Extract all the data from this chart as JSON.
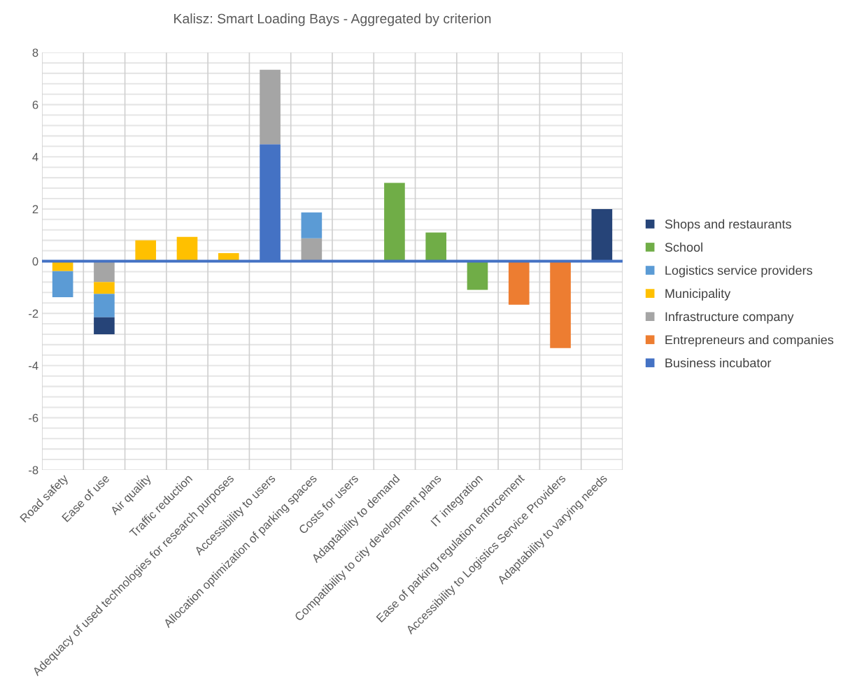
{
  "chart_data": {
    "type": "bar",
    "title": "Kalisz: Smart Loading Bays - Aggregated by criterion",
    "stacked": true,
    "categories": [
      "Road safety",
      "Ease of use",
      "Air quality",
      "Traffic reduction",
      "Adequacy of used technologies for research purposes",
      "Accessibility to users",
      "Allocation optimization of parking spaces",
      "Costs for users",
      "Adaptability to demand",
      "Compatibility to city development plans",
      "IT integration",
      "Ease of parking regulation enforcement",
      "Accessibility to Logistics Service Providers",
      "Adaptability to varying needs"
    ],
    "series": [
      {
        "name": "Business incubator",
        "color": "#4472c4",
        "values": [
          null,
          null,
          null,
          null,
          null,
          4.48,
          null,
          null,
          null,
          null,
          null,
          null,
          null,
          null
        ]
      },
      {
        "name": "Entrepreneurs and companies",
        "color": "#ed7d31",
        "values": [
          null,
          null,
          null,
          null,
          null,
          null,
          null,
          null,
          null,
          null,
          null,
          -1.67,
          -3.33,
          null
        ]
      },
      {
        "name": "Infrastructure company",
        "color": "#a5a5a5",
        "values": [
          null,
          -0.8,
          null,
          null,
          null,
          2.86,
          0.88,
          null,
          null,
          null,
          null,
          null,
          null,
          null
        ]
      },
      {
        "name": "Municipality",
        "color": "#ffc000",
        "values": [
          -0.38,
          -0.45,
          0.8,
          0.93,
          0.31,
          null,
          null,
          null,
          null,
          null,
          null,
          null,
          null,
          null
        ]
      },
      {
        "name": "Logistics service providers",
        "color": "#5b9bd5",
        "values": [
          -1.0,
          -0.9,
          null,
          null,
          null,
          null,
          0.99,
          null,
          null,
          null,
          null,
          null,
          null,
          null
        ]
      },
      {
        "name": "School",
        "color": "#70ad47",
        "values": [
          null,
          null,
          null,
          null,
          null,
          null,
          null,
          null,
          3.0,
          1.1,
          -1.1,
          null,
          null,
          null
        ]
      },
      {
        "name": "Shops and restaurants",
        "color": "#264478",
        "values": [
          null,
          -0.65,
          null,
          null,
          null,
          null,
          null,
          null,
          null,
          null,
          null,
          null,
          null,
          2.0
        ]
      }
    ],
    "ylim": [
      -8,
      8
    ],
    "yticks": [
      -8,
      -6,
      -4,
      -2,
      0,
      2,
      4,
      6,
      8
    ],
    "grid": true,
    "legend": "right",
    "ref_lines": [
      {
        "axis": "y",
        "value": 0,
        "color": "#4472c4"
      }
    ]
  }
}
